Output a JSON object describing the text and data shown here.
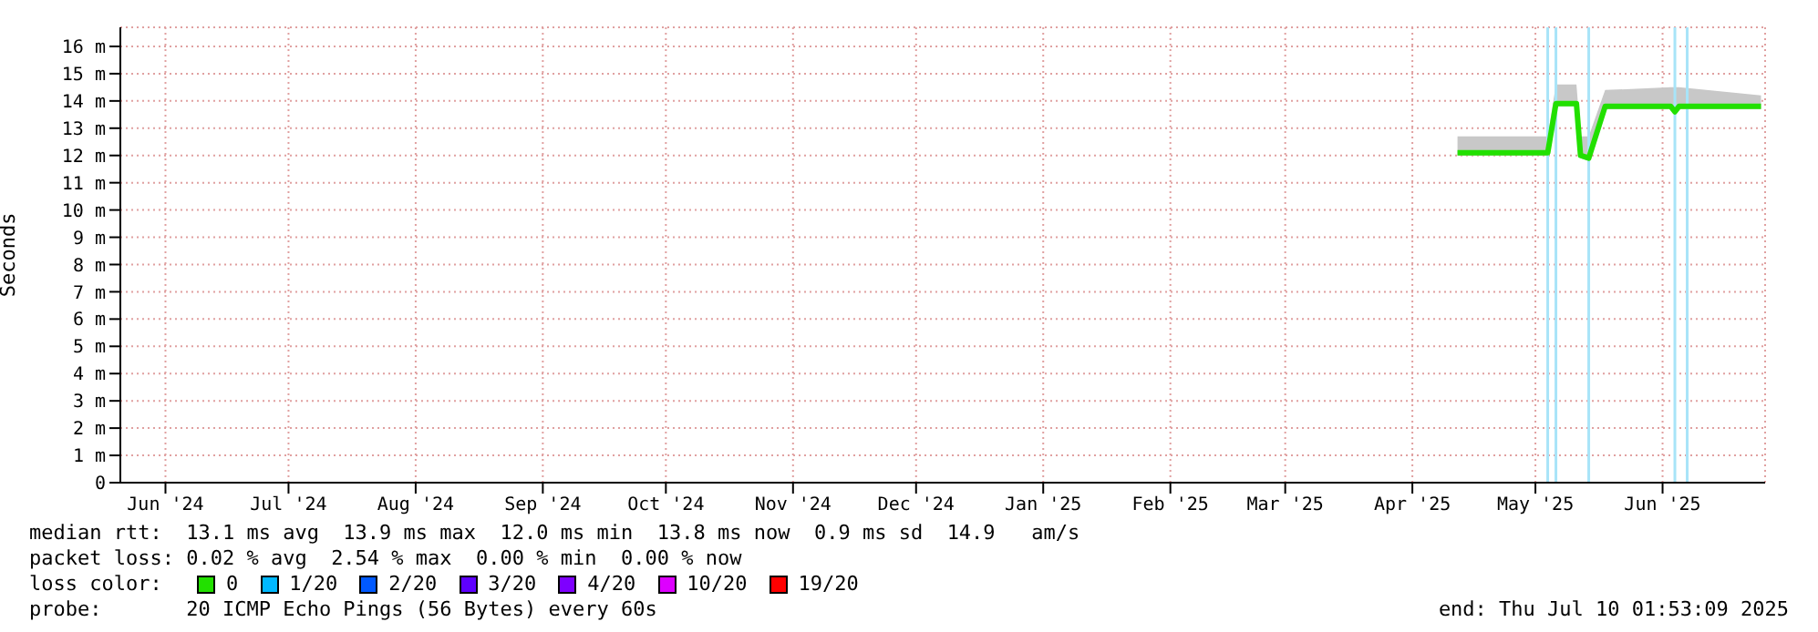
{
  "chart_data": {
    "type": "line",
    "ylabel": "Seconds",
    "xlim": [
      "2024-06-04",
      "2025-07-10"
    ],
    "xticks": [
      {
        "value": "2024-06-15",
        "label": "Jun '24"
      },
      {
        "value": "2024-07-15",
        "label": "Jul '24"
      },
      {
        "value": "2024-08-15",
        "label": "Aug '24"
      },
      {
        "value": "2024-09-15",
        "label": "Sep '24"
      },
      {
        "value": "2024-10-15",
        "label": "Oct '24"
      },
      {
        "value": "2024-11-15",
        "label": "Nov '24"
      },
      {
        "value": "2024-12-15",
        "label": "Dec '24"
      },
      {
        "value": "2025-01-15",
        "label": "Jan '25"
      },
      {
        "value": "2025-02-15",
        "label": "Feb '25"
      },
      {
        "value": "2025-03-15",
        "label": "Mar '25"
      },
      {
        "value": "2025-04-15",
        "label": "Apr '25"
      },
      {
        "value": "2025-05-15",
        "label": "May '25"
      },
      {
        "value": "2025-06-15",
        "label": "Jun '25"
      }
    ],
    "ylim": [
      0,
      16.7
    ],
    "yticks": [
      0,
      {
        "value": 1,
        "label": "1 m"
      },
      {
        "value": 2,
        "label": "2 m"
      },
      {
        "value": 3,
        "label": "3 m"
      },
      {
        "value": 4,
        "label": "4 m"
      },
      {
        "value": 5,
        "label": "5 m"
      },
      {
        "value": 6,
        "label": "6 m"
      },
      {
        "value": 7,
        "label": "7 m"
      },
      {
        "value": 8,
        "label": "8 m"
      },
      {
        "value": 9,
        "label": "9 m"
      },
      {
        "value": 10,
        "label": "10 m"
      },
      {
        "value": 11,
        "label": "11 m"
      },
      {
        "value": 12,
        "label": "12 m"
      },
      {
        "value": 13,
        "label": "13 m"
      },
      {
        "value": 14,
        "label": "14 m"
      },
      {
        "value": 15,
        "label": "15 m"
      },
      {
        "value": 16,
        "label": "16 m"
      }
    ],
    "grid": true,
    "legend": "bottom left",
    "legend_title": "loss color:",
    "marker": "none",
    "line_style": "solid",
    "series": [
      {
        "name": "0",
        "color": "#22e000",
        "x": [
          "2025-04-26",
          "2025-05-18",
          "2025-05-20",
          "2025-05-25",
          "2025-05-26",
          "2025-05-28",
          "2025-06-01",
          "2025-06-17",
          "2025-06-18",
          "2025-06-19",
          "2025-07-09"
        ],
        "values": [
          12.1,
          12.1,
          13.9,
          13.9,
          12.0,
          11.9,
          13.8,
          13.8,
          13.6,
          13.8,
          13.8
        ],
        "lower": [
          12.0,
          12.0,
          13.8,
          13.8,
          11.9,
          11.8,
          13.7,
          13.7,
          13.5,
          13.7,
          13.7
        ],
        "upper": [
          12.7,
          12.7,
          14.6,
          14.6,
          12.7,
          12.7,
          14.4,
          14.5,
          14.5,
          14.5,
          14.2
        ]
      },
      {
        "name": "1/20",
        "color": "#00b8ff"
      },
      {
        "name": "2/20",
        "color": "#0059ff"
      },
      {
        "name": "3/20",
        "color": "#5e00ff"
      },
      {
        "name": "4/20",
        "color": "#7e00ff"
      },
      {
        "name": "10/20",
        "color": "#dd00ff"
      },
      {
        "name": "19/20",
        "color": "#ff0000"
      }
    ],
    "ref_lines": [
      {
        "axis": "x",
        "value": "2025-05-18",
        "color": "#a8e4f8"
      },
      {
        "axis": "x",
        "value": "2025-05-20",
        "color": "#a8e4f8"
      },
      {
        "axis": "x",
        "value": "2025-05-28",
        "color": "#a8e4f8"
      },
      {
        "axis": "x",
        "value": "2025-06-18",
        "color": "#a8e4f8"
      },
      {
        "axis": "x",
        "value": "2025-06-21",
        "color": "#a8e4f8"
      }
    ],
    "annotations": [
      "median rtt:  13.1 ms avg  13.9 ms max  12.0 ms min  13.8 ms now  0.9 ms sd  14.9   am/s",
      "packet loss: 0.02 % avg  2.54 % max  0.00 % min  0.00 % now",
      "probe:       20 ICMP Echo Pings (56 Bytes) every 60s",
      "end: Thu Jul 10 01:53:09 2025"
    ]
  }
}
